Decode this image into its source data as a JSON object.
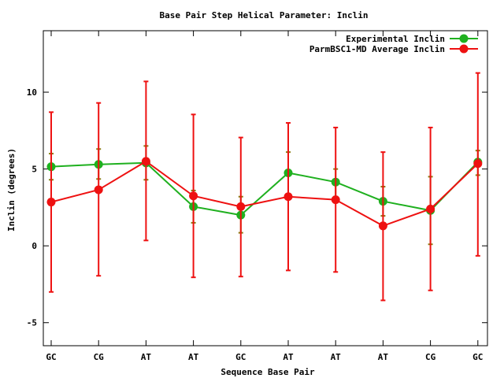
{
  "chart_data": {
    "type": "line",
    "title": "Base Pair Step Helical Parameter: Inclin",
    "xlabel": "Sequence Base Pair",
    "ylabel": "Inclin (degrees)",
    "categories": [
      "GC",
      "CG",
      "AT",
      "AT",
      "GC",
      "AT",
      "AT",
      "AT",
      "CG",
      "GC"
    ],
    "ylim": [
      -6.5,
      14
    ],
    "yticks": [
      -5,
      0,
      5,
      10
    ],
    "grid": false,
    "legend_position": "top-right",
    "series": [
      {
        "name": "Experimental Inclin",
        "color": "#1fb01f",
        "values": [
          5.15,
          5.3,
          5.4,
          2.55,
          2.0,
          4.75,
          4.15,
          2.9,
          2.3,
          5.45
        ],
        "error_low": [
          4.3,
          4.35,
          4.3,
          1.5,
          0.85,
          3.2,
          3.2,
          1.95,
          0.1,
          4.6
        ],
        "error_high": [
          6.0,
          6.3,
          6.5,
          3.6,
          3.2,
          6.1,
          5.0,
          3.85,
          4.5,
          6.2
        ]
      },
      {
        "name": "ParmBSC1-MD Average Inclin",
        "color": "#ee1111",
        "values": [
          2.85,
          3.65,
          5.5,
          3.25,
          2.55,
          3.2,
          3.0,
          1.3,
          2.4,
          5.35
        ],
        "error_low": [
          -3.0,
          -1.95,
          0.35,
          -2.05,
          -2.0,
          -1.6,
          -1.7,
          -3.55,
          -2.9,
          -0.65
        ],
        "error_high": [
          8.7,
          9.3,
          10.7,
          8.55,
          7.05,
          8.0,
          7.7,
          6.1,
          7.7,
          11.25
        ]
      }
    ]
  }
}
